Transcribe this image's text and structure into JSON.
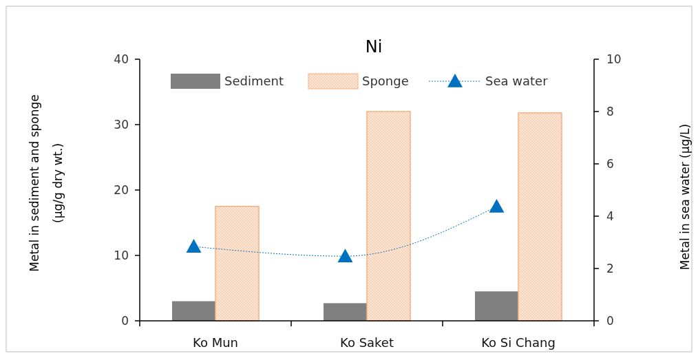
{
  "chart_data": {
    "type": "bar",
    "title": "Ni",
    "ylabel": "Metal in sediment and sponge (µg/g dry wt.)",
    "y2label": "Metal in sea water (µg/L)",
    "categories": [
      "Ko Mun",
      "Ko Saket",
      "Ko Si Chang"
    ],
    "series": [
      {
        "name": "Sediment",
        "color": "#808080",
        "values": [
          3.0,
          2.7,
          4.5
        ]
      },
      {
        "name": "Sponge",
        "color": "#f4b183",
        "values": [
          17.5,
          32.0,
          31.8
        ]
      },
      {
        "name": "Sea water",
        "type": "line",
        "axis": "y2",
        "color": "#0070c0",
        "values": [
          2.84,
          2.47,
          4.37
        ],
        "marker": "triangle",
        "line_style": "dotted"
      }
    ],
    "ylim": [
      0,
      40
    ],
    "yticks": [
      0,
      10,
      20,
      30,
      40
    ],
    "y2lim": [
      0,
      10
    ],
    "y2ticks": [
      0,
      2,
      4,
      6,
      8,
      10
    ],
    "legend": "top",
    "grid": false
  }
}
